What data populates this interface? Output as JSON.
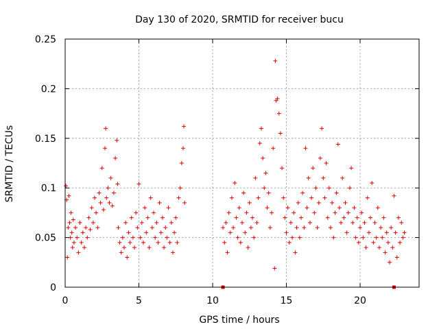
{
  "chart_data": {
    "type": "scatter",
    "title": "Day 130 of 2020, SRMTID for receiver bucu",
    "xlabel": "GPS time / hours",
    "ylabel": "SRMTID / TECUs",
    "xlim": [
      0,
      24
    ],
    "ylim": [
      0,
      0.25
    ],
    "xticks": [
      0,
      5,
      10,
      15,
      20
    ],
    "xtick_labels": [
      "0",
      "5",
      "10",
      "15",
      "20"
    ],
    "yticks": [
      0,
      0.05,
      0.1,
      0.15,
      0.2,
      0.25
    ],
    "ytick_labels": [
      "0",
      "0.05",
      "0.1",
      "0.15",
      "0.2",
      "0.25"
    ],
    "grid": true,
    "marker": "plus",
    "series_color": "#e00000",
    "gap_markers": [
      {
        "x": 10.7,
        "y": 0
      },
      {
        "x": 22.3,
        "y": 0
      }
    ],
    "series": [
      {
        "name": "SRMTID",
        "points": [
          [
            0.05,
            0.102
          ],
          [
            0.1,
            0.088
          ],
          [
            0.15,
            0.03
          ],
          [
            0.2,
            0.06
          ],
          [
            0.25,
            0.092
          ],
          [
            0.3,
            0.065
          ],
          [
            0.35,
            0.05
          ],
          [
            0.4,
            0.075
          ],
          [
            0.45,
            0.055
          ],
          [
            0.5,
            0.04
          ],
          [
            0.55,
            0.068
          ],
          [
            0.6,
            0.045
          ],
          [
            0.7,
            0.06
          ],
          [
            0.8,
            0.05
          ],
          [
            0.9,
            0.035
          ],
          [
            1.0,
            0.065
          ],
          [
            1.1,
            0.045
          ],
          [
            1.2,
            0.055
          ],
          [
            1.3,
            0.04
          ],
          [
            1.4,
            0.06
          ],
          [
            1.5,
            0.05
          ],
          [
            1.6,
            0.07
          ],
          [
            1.7,
            0.058
          ],
          [
            1.8,
            0.08
          ],
          [
            1.9,
            0.065
          ],
          [
            2.0,
            0.09
          ],
          [
            2.1,
            0.075
          ],
          [
            2.2,
            0.06
          ],
          [
            2.3,
            0.095
          ],
          [
            2.4,
            0.085
          ],
          [
            2.5,
            0.12
          ],
          [
            2.6,
            0.078
          ],
          [
            2.7,
            0.14
          ],
          [
            2.75,
            0.16
          ],
          [
            2.8,
            0.09
          ],
          [
            2.9,
            0.1
          ],
          [
            3.0,
            0.085
          ],
          [
            3.1,
            0.11
          ],
          [
            3.2,
            0.082
          ],
          [
            3.3,
            0.095
          ],
          [
            3.4,
            0.13
          ],
          [
            3.5,
            0.148
          ],
          [
            3.55,
            0.104
          ],
          [
            3.6,
            0.06
          ],
          [
            3.7,
            0.045
          ],
          [
            3.8,
            0.035
          ],
          [
            3.9,
            0.05
          ],
          [
            4.0,
            0.04
          ],
          [
            4.1,
            0.065
          ],
          [
            4.2,
            0.03
          ],
          [
            4.3,
            0.055
          ],
          [
            4.4,
            0.045
          ],
          [
            4.5,
            0.07
          ],
          [
            4.6,
            0.05
          ],
          [
            4.7,
            0.04
          ],
          [
            4.8,
            0.075
          ],
          [
            4.9,
            0.06
          ],
          [
            5.0,
            0.104
          ],
          [
            5.1,
            0.05
          ],
          [
            5.2,
            0.065
          ],
          [
            5.3,
            0.045
          ],
          [
            5.4,
            0.08
          ],
          [
            5.5,
            0.055
          ],
          [
            5.6,
            0.07
          ],
          [
            5.7,
            0.04
          ],
          [
            5.8,
            0.09
          ],
          [
            5.9,
            0.06
          ],
          [
            6.0,
            0.075
          ],
          [
            6.1,
            0.05
          ],
          [
            6.2,
            0.065
          ],
          [
            6.3,
            0.045
          ],
          [
            6.4,
            0.085
          ],
          [
            6.5,
            0.055
          ],
          [
            6.6,
            0.07
          ],
          [
            6.7,
            0.04
          ],
          [
            6.8,
            0.06
          ],
          [
            6.9,
            0.05
          ],
          [
            7.0,
            0.08
          ],
          [
            7.1,
            0.045
          ],
          [
            7.2,
            0.065
          ],
          [
            7.3,
            0.035
          ],
          [
            7.4,
            0.055
          ],
          [
            7.5,
            0.07
          ],
          [
            7.6,
            0.045
          ],
          [
            7.7,
            0.09
          ],
          [
            7.8,
            0.1
          ],
          [
            7.9,
            0.125
          ],
          [
            8.0,
            0.14
          ],
          [
            8.05,
            0.162
          ],
          [
            8.1,
            0.085
          ],
          [
            10.7,
            0.06
          ],
          [
            10.8,
            0.045
          ],
          [
            10.9,
            0.065
          ],
          [
            11.0,
            0.035
          ],
          [
            11.1,
            0.075
          ],
          [
            11.2,
            0.055
          ],
          [
            11.3,
            0.09
          ],
          [
            11.4,
            0.06
          ],
          [
            11.5,
            0.105
          ],
          [
            11.6,
            0.07
          ],
          [
            11.7,
            0.05
          ],
          [
            11.8,
            0.08
          ],
          [
            11.9,
            0.045
          ],
          [
            12.0,
            0.065
          ],
          [
            12.1,
            0.095
          ],
          [
            12.2,
            0.055
          ],
          [
            12.3,
            0.075
          ],
          [
            12.4,
            0.04
          ],
          [
            12.5,
            0.085
          ],
          [
            12.6,
            0.06
          ],
          [
            12.7,
            0.07
          ],
          [
            12.8,
            0.05
          ],
          [
            12.9,
            0.11
          ],
          [
            13.0,
            0.065
          ],
          [
            13.1,
            0.09
          ],
          [
            13.2,
            0.145
          ],
          [
            13.3,
            0.16
          ],
          [
            13.4,
            0.13
          ],
          [
            13.5,
            0.1
          ],
          [
            13.6,
            0.115
          ],
          [
            13.7,
            0.08
          ],
          [
            13.8,
            0.095
          ],
          [
            13.9,
            0.06
          ],
          [
            14.0,
            0.075
          ],
          [
            14.1,
            0.14
          ],
          [
            14.2,
            0.019
          ],
          [
            14.25,
            0.228
          ],
          [
            14.3,
            0.188
          ],
          [
            14.4,
            0.19
          ],
          [
            14.5,
            0.175
          ],
          [
            14.6,
            0.155
          ],
          [
            14.7,
            0.12
          ],
          [
            14.8,
            0.09
          ],
          [
            14.9,
            0.07
          ],
          [
            15.0,
            0.055
          ],
          [
            15.1,
            0.08
          ],
          [
            15.2,
            0.045
          ],
          [
            15.3,
            0.065
          ],
          [
            15.4,
            0.05
          ],
          [
            15.5,
            0.075
          ],
          [
            15.6,
            0.035
          ],
          [
            15.7,
            0.06
          ],
          [
            15.8,
            0.085
          ],
          [
            15.9,
            0.05
          ],
          [
            16.0,
            0.07
          ],
          [
            16.1,
            0.095
          ],
          [
            16.2,
            0.06
          ],
          [
            16.3,
            0.14
          ],
          [
            16.4,
            0.08
          ],
          [
            16.5,
            0.11
          ],
          [
            16.6,
            0.065
          ],
          [
            16.7,
            0.09
          ],
          [
            16.8,
            0.12
          ],
          [
            16.9,
            0.075
          ],
          [
            17.0,
            0.1
          ],
          [
            17.1,
            0.06
          ],
          [
            17.2,
            0.085
          ],
          [
            17.3,
            0.13
          ],
          [
            17.4,
            0.16
          ],
          [
            17.5,
            0.11
          ],
          [
            17.6,
            0.09
          ],
          [
            17.7,
            0.125
          ],
          [
            17.8,
            0.07
          ],
          [
            17.9,
            0.1
          ],
          [
            18.0,
            0.06
          ],
          [
            18.1,
            0.085
          ],
          [
            18.2,
            0.05
          ],
          [
            18.3,
            0.075
          ],
          [
            18.4,
            0.095
          ],
          [
            18.5,
            0.144
          ],
          [
            18.6,
            0.08
          ],
          [
            18.7,
            0.065
          ],
          [
            18.8,
            0.11
          ],
          [
            18.9,
            0.07
          ],
          [
            19.0,
            0.085
          ],
          [
            19.1,
            0.055
          ],
          [
            19.2,
            0.075
          ],
          [
            19.3,
            0.1
          ],
          [
            19.4,
            0.12
          ],
          [
            19.5,
            0.065
          ],
          [
            19.6,
            0.08
          ],
          [
            19.7,
            0.05
          ],
          [
            19.8,
            0.07
          ],
          [
            19.9,
            0.045
          ],
          [
            20.0,
            0.06
          ],
          [
            20.1,
            0.075
          ],
          [
            20.2,
            0.05
          ],
          [
            20.3,
            0.065
          ],
          [
            20.4,
            0.04
          ],
          [
            20.5,
            0.09
          ],
          [
            20.6,
            0.055
          ],
          [
            20.7,
            0.07
          ],
          [
            20.8,
            0.105
          ],
          [
            20.9,
            0.045
          ],
          [
            21.0,
            0.065
          ],
          [
            21.1,
            0.05
          ],
          [
            21.2,
            0.08
          ],
          [
            21.3,
            0.04
          ],
          [
            21.4,
            0.06
          ],
          [
            21.5,
            0.05
          ],
          [
            21.6,
            0.07
          ],
          [
            21.7,
            0.035
          ],
          [
            21.8,
            0.055
          ],
          [
            21.9,
            0.045
          ],
          [
            22.0,
            0.025
          ],
          [
            22.1,
            0.06
          ],
          [
            22.2,
            0.04
          ],
          [
            22.3,
            0.092
          ],
          [
            22.4,
            0.055
          ],
          [
            22.5,
            0.03
          ],
          [
            22.6,
            0.07
          ],
          [
            22.7,
            0.045
          ],
          [
            22.8,
            0.065
          ],
          [
            22.9,
            0.05
          ],
          [
            23.0,
            0.055
          ]
        ]
      }
    ]
  }
}
